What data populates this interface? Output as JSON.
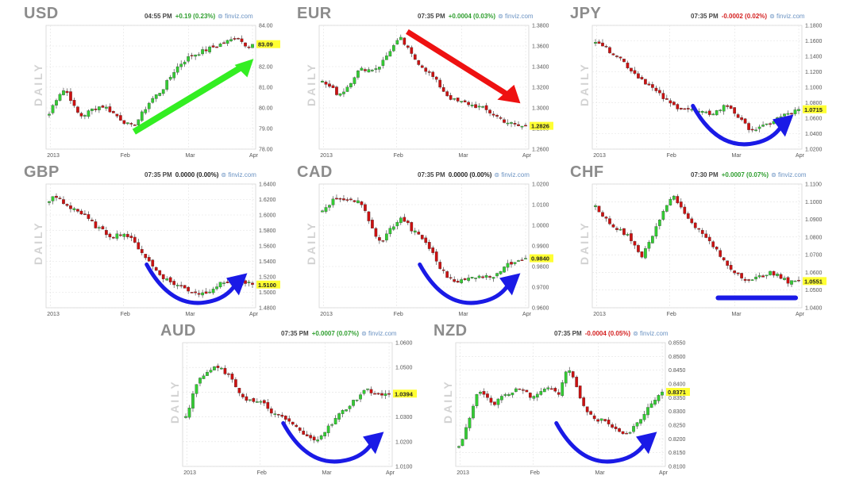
{
  "label_daily": "DAILY",
  "source": "⊚ finviz.com",
  "colors": {
    "up": "#33cc33",
    "down": "#cc1111",
    "green_arrow": "#33ee22",
    "red_arrow": "#ee1111",
    "blue_curve": "#1a1ae6",
    "last_bg": "#ffff33"
  },
  "chart_data": [
    {
      "type": "candlestick",
      "title": "USD",
      "time": "04:55 PM",
      "change": "+0.19 (0.23%)",
      "dir": "up",
      "ylim": [
        78.0,
        84.0
      ],
      "yticks": [
        "84.00",
        "83.00",
        "82.00",
        "81.00",
        "80.00",
        "79.00",
        "78.00"
      ],
      "last": "83.09",
      "xticks": [
        "2013",
        "Feb",
        "Mar",
        "Apr"
      ],
      "path": [
        79.7,
        80.3,
        80.7,
        80.9,
        80.5,
        79.9,
        79.6,
        79.7,
        79.9,
        80.0,
        80.1,
        80.0,
        79.8,
        79.6,
        79.4,
        79.2,
        79.1,
        79.4,
        79.8,
        80.2,
        80.5,
        80.7,
        81.0,
        81.4,
        81.8,
        82.1,
        82.3,
        82.5,
        82.6,
        82.7,
        82.8,
        82.9,
        83.0,
        83.1,
        83.2,
        83.3,
        83.5,
        83.2,
        83.0,
        83.09
      ],
      "annotation": "green-arrow-up"
    },
    {
      "type": "candlestick",
      "title": "EUR",
      "time": "07:35 PM",
      "change": "+0.0004 (0.03%)",
      "dir": "up",
      "ylim": [
        1.26,
        1.38
      ],
      "yticks": [
        "1.3800",
        "1.3600",
        "1.3400",
        "1.3200",
        "1.3000",
        "1.2800",
        "1.2600"
      ],
      "last": "1.2826",
      "xticks": [
        "2013",
        "Feb",
        "Mar",
        "Apr"
      ],
      "path": [
        1.325,
        1.322,
        1.318,
        1.313,
        1.316,
        1.322,
        1.33,
        1.336,
        1.338,
        1.337,
        1.338,
        1.341,
        1.348,
        1.356,
        1.362,
        1.367,
        1.36,
        1.352,
        1.346,
        1.341,
        1.336,
        1.331,
        1.325,
        1.318,
        1.312,
        1.308,
        1.306,
        1.305,
        1.304,
        1.302,
        1.301,
        1.299,
        1.296,
        1.293,
        1.29,
        1.287,
        1.285,
        1.283,
        1.282,
        1.2826
      ],
      "annotation": "red-arrow-down"
    },
    {
      "type": "candlestick",
      "title": "JPY",
      "time": "07:35 PM",
      "change": "-0.0002 (0.02%)",
      "dir": "down",
      "ylim": [
        1.02,
        1.18
      ],
      "yticks": [
        "1.1800",
        "1.1600",
        "1.1400",
        "1.1200",
        "1.1000",
        "1.0800",
        "1.0600",
        "1.0400",
        "1.0200"
      ],
      "last": "1.0715",
      "xticks": [
        "2013",
        "Feb",
        "Mar",
        "Apr"
      ],
      "path": [
        1.161,
        1.157,
        1.15,
        1.146,
        1.142,
        1.136,
        1.128,
        1.121,
        1.115,
        1.11,
        1.104,
        1.098,
        1.092,
        1.086,
        1.08,
        1.076,
        1.074,
        1.073,
        1.071,
        1.069,
        1.067,
        1.066,
        1.066,
        1.068,
        1.072,
        1.077,
        1.073,
        1.065,
        1.056,
        1.049,
        1.046,
        1.046,
        1.048,
        1.052,
        1.056,
        1.06,
        1.063,
        1.066,
        1.068,
        1.0715
      ],
      "annotation": "blue-curve-up"
    },
    {
      "type": "candlestick",
      "title": "GBP",
      "time": "07:35 PM",
      "change": "0.0000 (0.00%)",
      "dir": "flat",
      "ylim": [
        1.48,
        1.64
      ],
      "yticks": [
        "1.6400",
        "1.6200",
        "1.6000",
        "1.5800",
        "1.5600",
        "1.5400",
        "1.5200",
        "1.5000",
        "1.4800"
      ],
      "last": "1.5100",
      "xticks": [
        "2013",
        "Feb",
        "Mar",
        "Apr"
      ],
      "path": [
        1.618,
        1.624,
        1.621,
        1.614,
        1.61,
        1.608,
        1.602,
        1.597,
        1.591,
        1.585,
        1.58,
        1.576,
        1.572,
        1.574,
        1.577,
        1.573,
        1.566,
        1.559,
        1.55,
        1.541,
        1.532,
        1.525,
        1.519,
        1.514,
        1.511,
        1.508,
        1.505,
        1.502,
        1.5,
        1.498,
        1.5,
        1.504,
        1.508,
        1.511,
        1.514,
        1.513,
        1.511,
        1.512,
        1.511,
        1.51
      ],
      "annotation": "blue-curve-up"
    },
    {
      "type": "candlestick",
      "title": "CAD",
      "time": "07:35 PM",
      "change": "0.0000 (0.00%)",
      "dir": "flat",
      "ylim": [
        0.96,
        1.02
      ],
      "yticks": [
        "1.0200",
        "1.0100",
        "1.0000",
        "0.9900",
        "0.9800",
        "0.9700",
        "0.9600"
      ],
      "last": "0.9840",
      "xticks": [
        "2013",
        "Feb",
        "Mar",
        "Apr"
      ],
      "path": [
        1.006,
        1.01,
        1.012,
        1.012,
        1.013,
        1.013,
        1.012,
        1.011,
        1.008,
        1.002,
        0.995,
        0.992,
        0.994,
        0.998,
        1.001,
        1.003,
        1.002,
        0.998,
        0.996,
        0.994,
        0.991,
        0.987,
        0.982,
        0.978,
        0.975,
        0.974,
        0.973,
        0.973,
        0.974,
        0.975,
        0.976,
        0.975,
        0.975,
        0.976,
        0.978,
        0.98,
        0.981,
        0.983,
        0.984,
        0.984
      ],
      "annotation": "blue-curve-up"
    },
    {
      "type": "candlestick",
      "title": "CHF",
      "time": "07:30 PM",
      "change": "+0.0007 (0.07%)",
      "dir": "up",
      "ylim": [
        1.04,
        1.11
      ],
      "yticks": [
        "1.1100",
        "1.1000",
        "1.0900",
        "1.0800",
        "1.0700",
        "1.0600",
        "1.0500",
        "1.0400"
      ],
      "last": "1.0551",
      "xticks": [
        "2013",
        "Feb",
        "Mar",
        "Apr"
      ],
      "path": [
        1.097,
        1.094,
        1.09,
        1.088,
        1.085,
        1.083,
        1.082,
        1.078,
        1.073,
        1.069,
        1.075,
        1.081,
        1.088,
        1.095,
        1.1,
        1.104,
        1.099,
        1.093,
        1.09,
        1.087,
        1.083,
        1.08,
        1.077,
        1.073,
        1.069,
        1.065,
        1.062,
        1.06,
        1.058,
        1.056,
        1.055,
        1.057,
        1.058,
        1.06,
        1.059,
        1.058,
        1.056,
        1.055,
        1.056,
        1.0551
      ],
      "annotation": "blue-flat-line"
    },
    {
      "type": "candlestick",
      "title": "AUD",
      "time": "07:35 PM",
      "change": "+0.0007 (0.07%)",
      "dir": "up",
      "ylim": [
        1.01,
        1.06
      ],
      "yticks": [
        "1.0600",
        "1.0500",
        "1.0400",
        "1.0300",
        "1.0200",
        "1.0100"
      ],
      "last": "1.0394",
      "xticks": [
        "2013",
        "Feb",
        "Mar",
        "Apr"
      ],
      "path": [
        1.031,
        1.036,
        1.043,
        1.046,
        1.048,
        1.049,
        1.05,
        1.049,
        1.047,
        1.044,
        1.041,
        1.038,
        1.037,
        1.036,
        1.036,
        1.035,
        1.033,
        1.031,
        1.03,
        1.029,
        1.028,
        1.026,
        1.024,
        1.022,
        1.021,
        1.021,
        1.023,
        1.025,
        1.027,
        1.03,
        1.032,
        1.034,
        1.036,
        1.038,
        1.04,
        1.041,
        1.04,
        1.039,
        1.039,
        1.0394
      ],
      "annotation": "blue-curve-up"
    },
    {
      "type": "candlestick",
      "title": "NZD",
      "time": "07:35 PM",
      "change": "-0.0004 (0.05%)",
      "dir": "down",
      "ylim": [
        0.81,
        0.855
      ],
      "yticks": [
        "0.8550",
        "0.8500",
        "0.8450",
        "0.8400",
        "0.8350",
        "0.8300",
        "0.8250",
        "0.8200",
        "0.8150",
        "0.8100"
      ],
      "last": "0.8371",
      "xticks": [
        "2013",
        "Feb",
        "Mar",
        "Apr"
      ],
      "path": [
        0.817,
        0.822,
        0.828,
        0.834,
        0.838,
        0.836,
        0.834,
        0.833,
        0.835,
        0.836,
        0.837,
        0.838,
        0.839,
        0.837,
        0.835,
        0.836,
        0.838,
        0.839,
        0.838,
        0.836,
        0.841,
        0.846,
        0.842,
        0.836,
        0.832,
        0.829,
        0.827,
        0.827,
        0.826,
        0.825,
        0.824,
        0.823,
        0.822,
        0.823,
        0.825,
        0.828,
        0.831,
        0.833,
        0.836,
        0.8371
      ],
      "annotation": "blue-curve-up"
    }
  ]
}
